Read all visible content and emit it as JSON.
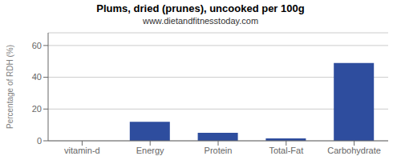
{
  "chart_data": {
    "type": "bar",
    "title": "Plums, dried (prunes), uncooked per 100g",
    "subtitle": "www.dietandfitnesstoday.com",
    "categories": [
      "vitamin-d",
      "Energy",
      "Protein",
      "Total-Fat",
      "Carbohydrate"
    ],
    "values": [
      0,
      12,
      5,
      1.5,
      49
    ],
    "color": "#2e4d9e",
    "ylabel": "Percentage of RDH (%)",
    "ylim": [
      0,
      68
    ],
    "yticks": [
      0,
      20,
      40,
      60
    ],
    "grid": true
  }
}
